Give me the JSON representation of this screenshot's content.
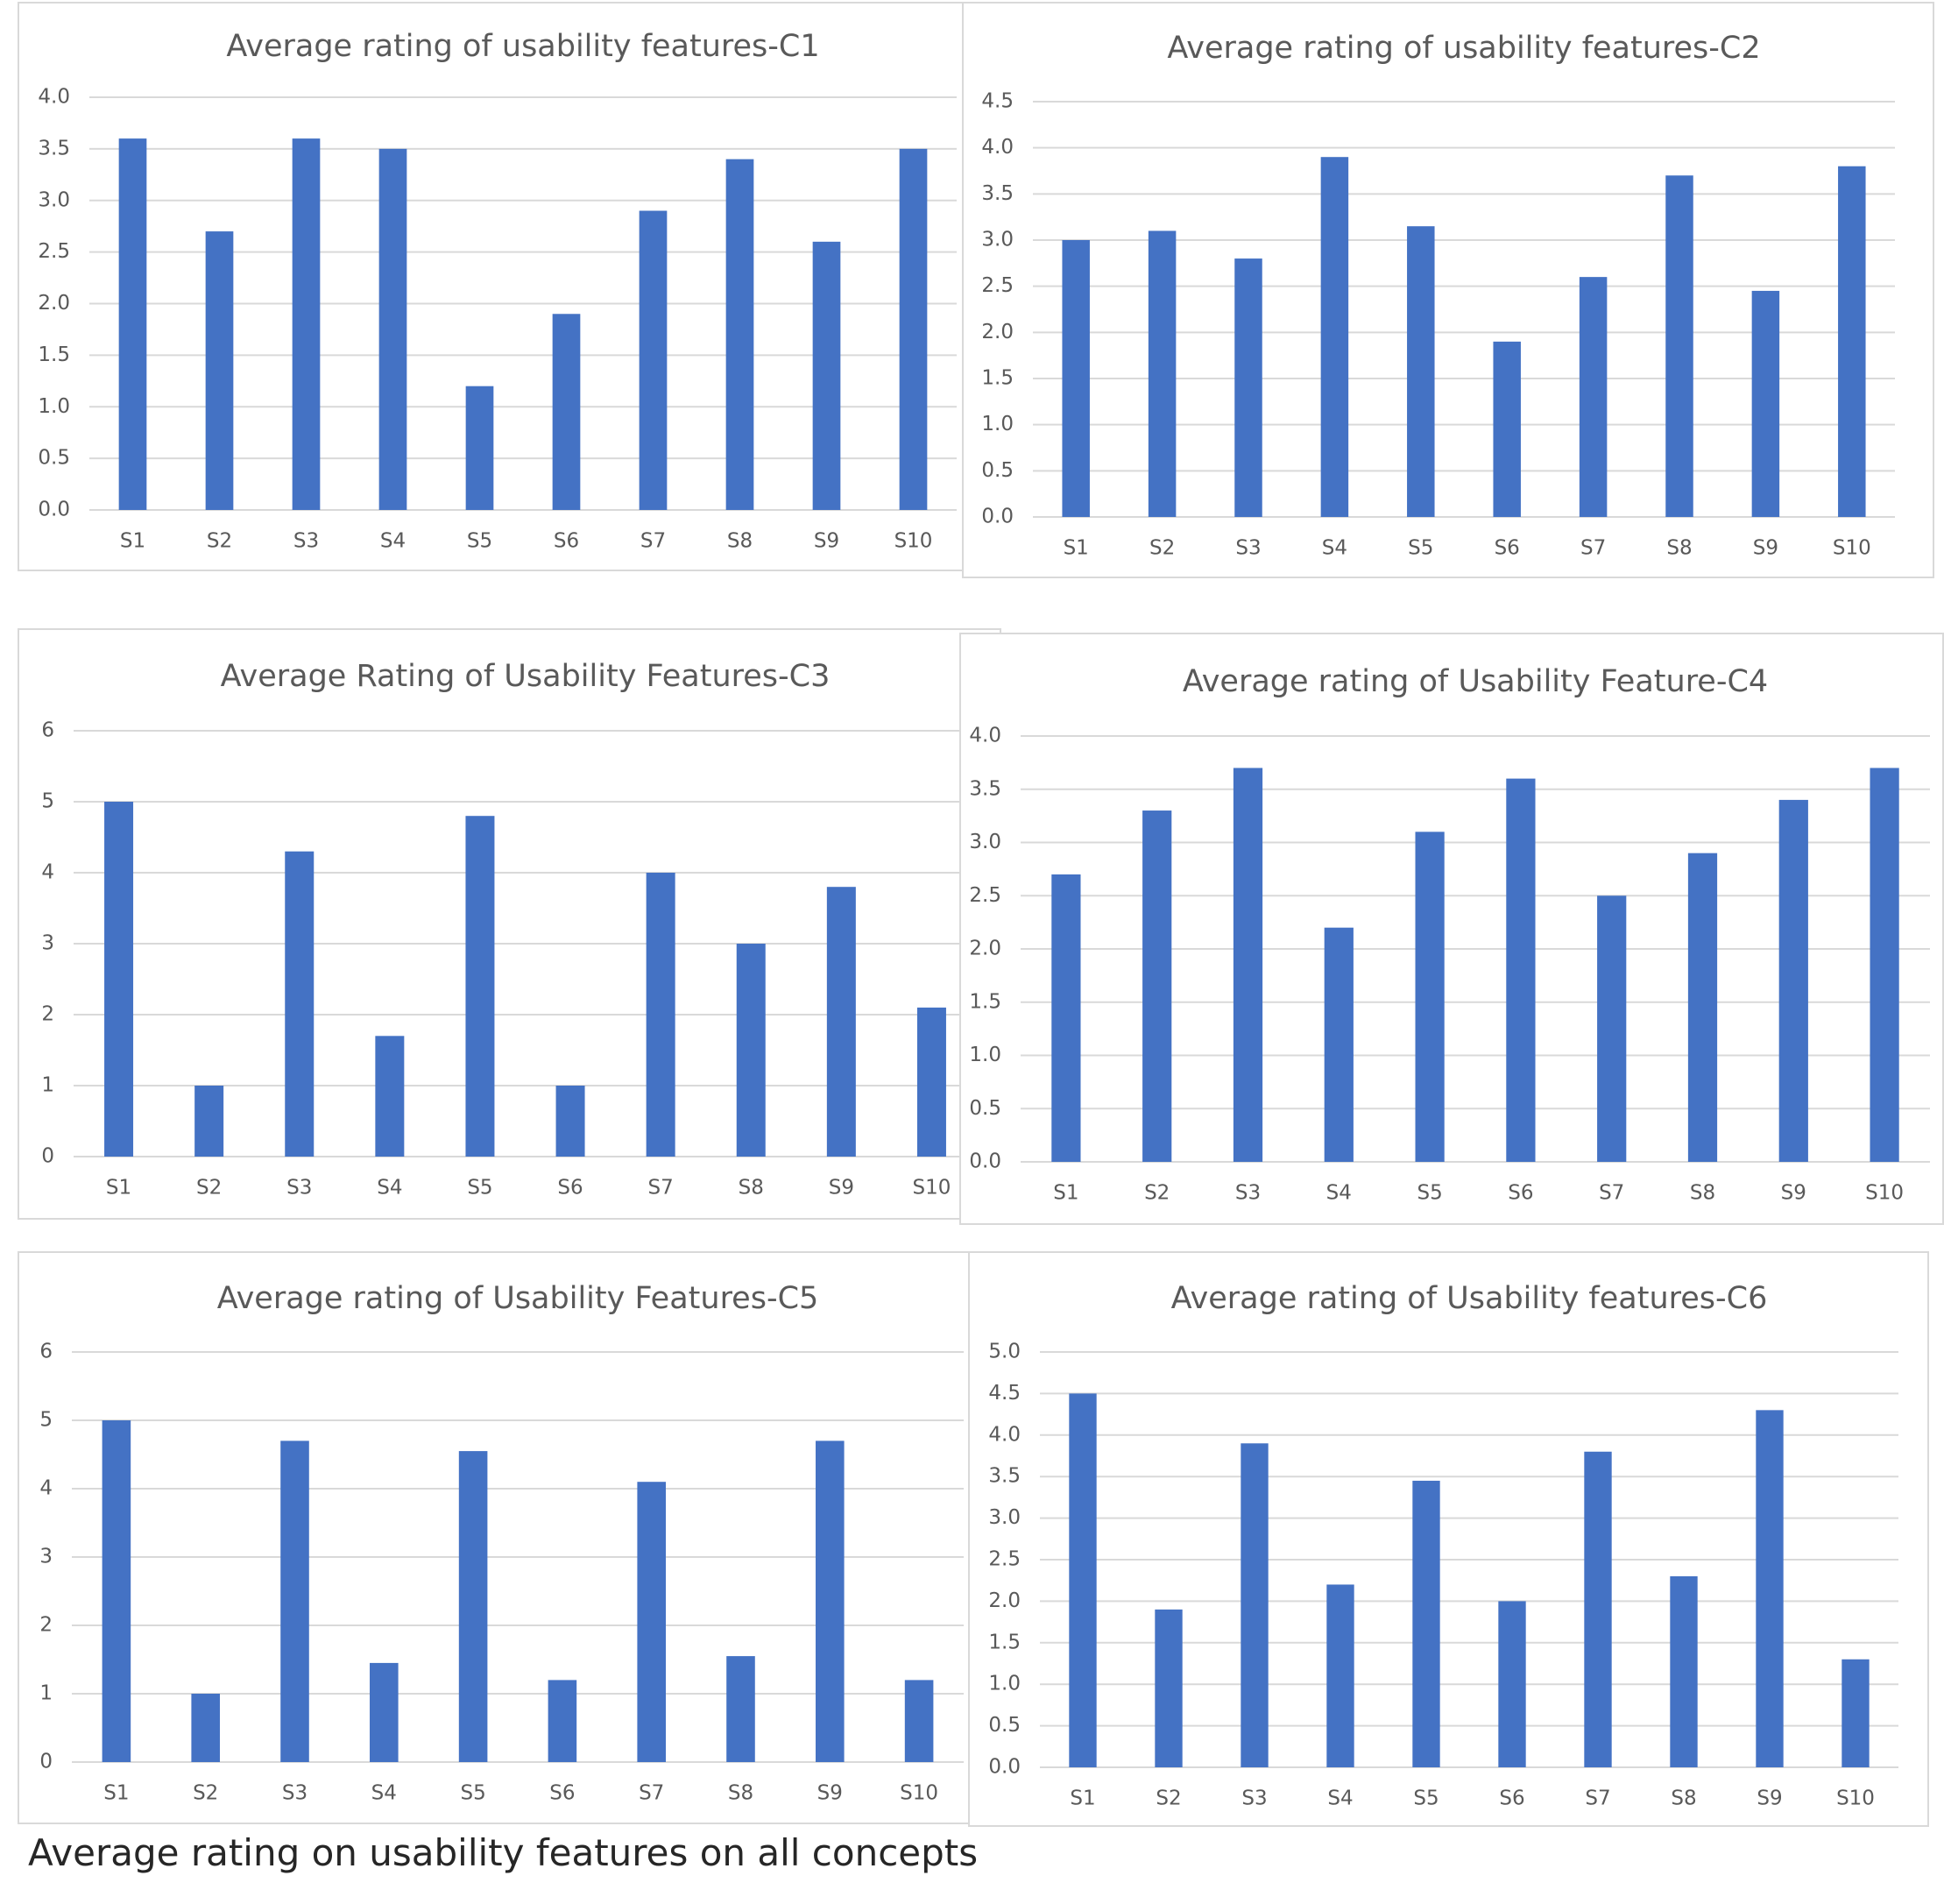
{
  "caption": "Average rating on usability features on all concepts",
  "colors": {
    "bar": "#4472c4",
    "grid": "#d9d9d9",
    "text": "#595959"
  },
  "chart_data": [
    {
      "type": "bar",
      "title": "Average rating of usability features-C1",
      "categories": [
        "S1",
        "S2",
        "S3",
        "S4",
        "S5",
        "S6",
        "S7",
        "S8",
        "S9",
        "S10"
      ],
      "values": [
        3.6,
        2.7,
        3.6,
        3.5,
        1.2,
        1.9,
        2.9,
        3.4,
        2.6,
        3.5
      ],
      "ylim": [
        0,
        4
      ],
      "yticks": [
        "0.0",
        "0.5",
        "1.0",
        "1.5",
        "2.0",
        "2.5",
        "3.0",
        "3.5",
        "4.0"
      ],
      "xlabel": "",
      "ylabel": "",
      "grid": true
    },
    {
      "type": "bar",
      "title": "Average rating of usability features-C2",
      "categories": [
        "S1",
        "S2",
        "S3",
        "S4",
        "S5",
        "S6",
        "S7",
        "S8",
        "S9",
        "S10"
      ],
      "values": [
        3.0,
        3.1,
        2.8,
        3.9,
        3.15,
        1.9,
        2.6,
        3.7,
        2.45,
        3.8
      ],
      "ylim": [
        0,
        4.5
      ],
      "yticks": [
        "0.0",
        "0.5",
        "1.0",
        "1.5",
        "2.0",
        "2.5",
        "3.0",
        "3.5",
        "4.0",
        "4.5"
      ],
      "xlabel": "",
      "ylabel": "",
      "grid": true
    },
    {
      "type": "bar",
      "title": "Average Rating of Usability Features-C3",
      "categories": [
        "S1",
        "S2",
        "S3",
        "S4",
        "S5",
        "S6",
        "S7",
        "S8",
        "S9",
        "S10"
      ],
      "values": [
        5.0,
        1.0,
        4.3,
        1.7,
        4.8,
        1.0,
        4.0,
        3.0,
        3.8,
        2.1
      ],
      "ylim": [
        0,
        6
      ],
      "yticks": [
        "0",
        "1",
        "2",
        "3",
        "4",
        "5",
        "6"
      ],
      "xlabel": "",
      "ylabel": "",
      "grid": true
    },
    {
      "type": "bar",
      "title": "Average rating of Usability Feature-C4",
      "categories": [
        "S1",
        "S2",
        "S3",
        "S4",
        "S5",
        "S6",
        "S7",
        "S8",
        "S9",
        "S10"
      ],
      "values": [
        2.7,
        3.3,
        3.7,
        2.2,
        3.1,
        3.6,
        2.5,
        2.9,
        3.4,
        3.7
      ],
      "ylim": [
        0,
        4
      ],
      "yticks": [
        "0.0",
        "0.5",
        "1.0",
        "1.5",
        "2.0",
        "2.5",
        "3.0",
        "3.5",
        "4.0"
      ],
      "xlabel": "",
      "ylabel": "",
      "grid": true
    },
    {
      "type": "bar",
      "title": "Average rating of Usability Features-C5",
      "categories": [
        "S1",
        "S2",
        "S3",
        "S4",
        "S5",
        "S6",
        "S7",
        "S8",
        "S9",
        "S10"
      ],
      "values": [
        5.0,
        1.0,
        4.7,
        1.45,
        4.55,
        1.2,
        4.1,
        1.55,
        4.7,
        1.2
      ],
      "ylim": [
        0,
        6
      ],
      "yticks": [
        "0",
        "1",
        "2",
        "3",
        "4",
        "5",
        "6"
      ],
      "xlabel": "",
      "ylabel": "",
      "grid": true
    },
    {
      "type": "bar",
      "title": "Average rating of Usability features-C6",
      "categories": [
        "S1",
        "S2",
        "S3",
        "S4",
        "S5",
        "S6",
        "S7",
        "S8",
        "S9",
        "S10"
      ],
      "values": [
        4.5,
        1.9,
        3.9,
        2.2,
        3.45,
        2.0,
        3.8,
        2.3,
        4.3,
        1.3
      ],
      "ylim": [
        0,
        5
      ],
      "yticks": [
        "0.0",
        "0.5",
        "1.0",
        "1.5",
        "2.0",
        "2.5",
        "3.0",
        "3.5",
        "4.0",
        "4.5",
        "5.0"
      ],
      "xlabel": "",
      "ylabel": "",
      "grid": true
    }
  ]
}
